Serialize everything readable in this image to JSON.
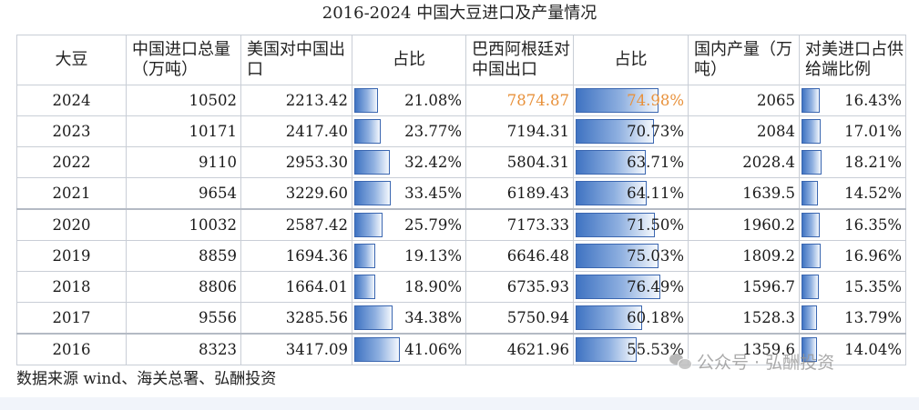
{
  "title": "2016-2024 中国大豆进口及产量情况",
  "columns": [
    "大豆",
    "中国进口总量（万吨）",
    "美国对中国出口",
    "占比",
    "巴西阿根廷对中国出口",
    "占比",
    "国内产量（万吨）",
    "对美进口占供给端比例"
  ],
  "rows": [
    {
      "year": "2024",
      "import_total": "10502",
      "us_export": "2213.42",
      "us_share": "21.08%",
      "us_share_value": 21.08,
      "br_export": "7874.87",
      "br_share": "74.98%",
      "br_share_value": 74.98,
      "domestic": "2065",
      "us_supply_share": "16.43%",
      "us_supply_value": 16.43,
      "highlight": true
    },
    {
      "year": "2023",
      "import_total": "10171",
      "us_export": "2417.40",
      "us_share": "23.77%",
      "us_share_value": 23.77,
      "br_export": "7194.31",
      "br_share": "70.73%",
      "br_share_value": 70.73,
      "domestic": "2084",
      "us_supply_share": "17.01%",
      "us_supply_value": 17.01
    },
    {
      "year": "2022",
      "import_total": "9110",
      "us_export": "2953.30",
      "us_share": "32.42%",
      "us_share_value": 32.42,
      "br_export": "5804.31",
      "br_share": "63.71%",
      "br_share_value": 63.71,
      "domestic": "2028.4",
      "us_supply_share": "18.21%",
      "us_supply_value": 18.21
    },
    {
      "year": "2021",
      "import_total": "9654",
      "us_export": "3229.60",
      "us_share": "33.45%",
      "us_share_value": 33.45,
      "br_export": "6189.43",
      "br_share": "64.11%",
      "br_share_value": 64.11,
      "domestic": "1639.5",
      "us_supply_share": "14.52%",
      "us_supply_value": 14.52
    },
    {
      "year": "2020",
      "import_total": "10032",
      "us_export": "2587.42",
      "us_share": "25.79%",
      "us_share_value": 25.79,
      "br_export": "7173.33",
      "br_share": "71.50%",
      "br_share_value": 71.5,
      "domestic": "1960.2",
      "us_supply_share": "16.35%",
      "us_supply_value": 16.35
    },
    {
      "year": "2019",
      "import_total": "8859",
      "us_export": "1694.36",
      "us_share": "19.13%",
      "us_share_value": 19.13,
      "br_export": "6646.48",
      "br_share": "75.03%",
      "br_share_value": 75.03,
      "domestic": "1809.2",
      "us_supply_share": "16.96%",
      "us_supply_value": 16.96
    },
    {
      "year": "2018",
      "import_total": "8806",
      "us_export": "1664.01",
      "us_share": "18.90%",
      "us_share_value": 18.9,
      "br_export": "6735.93",
      "br_share": "76.49%",
      "br_share_value": 76.49,
      "domestic": "1596.7",
      "us_supply_share": "15.35%",
      "us_supply_value": 15.35
    },
    {
      "year": "2017",
      "import_total": "9556",
      "us_export": "3285.56",
      "us_share": "34.38%",
      "us_share_value": 34.38,
      "br_export": "5750.94",
      "br_share": "60.18%",
      "br_share_value": 60.18,
      "domestic": "1528.3",
      "us_supply_share": "13.79%",
      "us_supply_value": 13.79
    },
    {
      "year": "2016",
      "import_total": "8323",
      "us_export": "3417.09",
      "us_share": "41.06%",
      "us_share_value": 41.06,
      "br_export": "4621.96",
      "br_share": "55.53%",
      "br_share_value": 55.53,
      "domestic": "1359.6",
      "us_supply_share": "14.04%",
      "us_supply_value": 14.04
    }
  ],
  "bar_color": "#3f73c2",
  "highlight_color": "#e8913b",
  "source_note": "数据来源  wind、海关总署、弘酬投资",
  "watermark": "公众号 · 弘酬投资",
  "watermark_icon": "wechat-icon"
}
